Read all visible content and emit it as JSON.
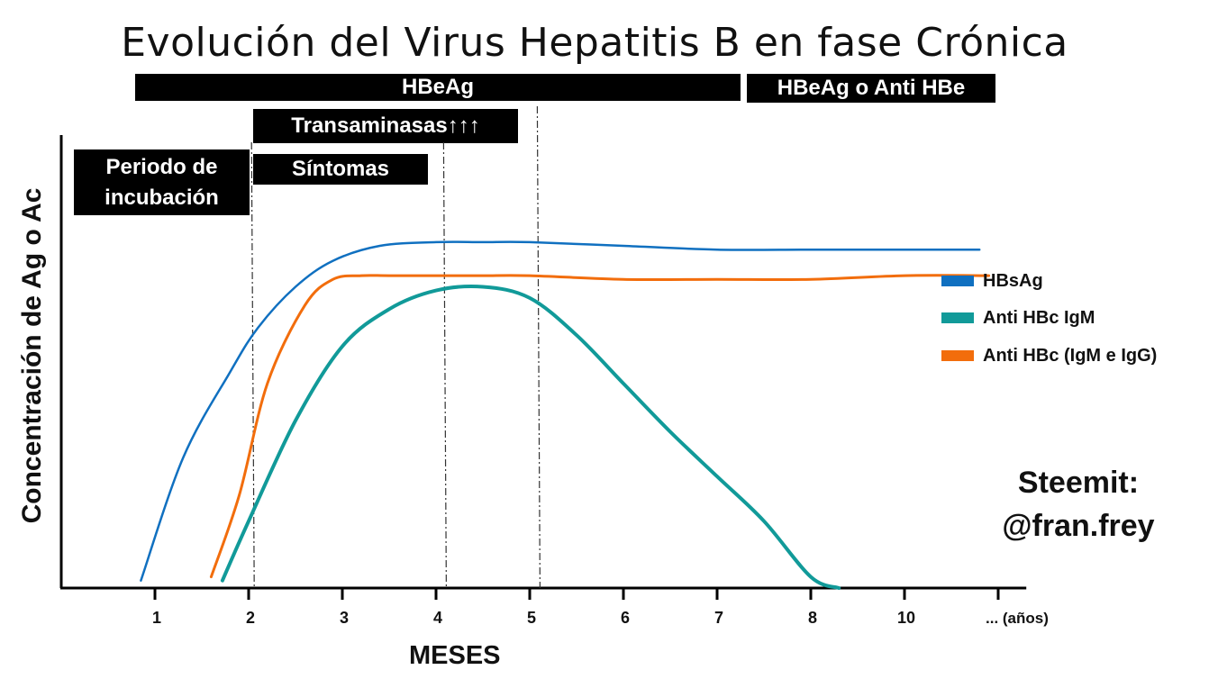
{
  "chart_data": {
    "type": "line",
    "title": "Evolución del Virus Hepatitis B en fase Crónica",
    "xlabel": "MESES",
    "ylabel": "Concentración de Ag o Ac",
    "x_ticks": [
      {
        "label": "1",
        "x": 1
      },
      {
        "label": "2",
        "x": 2
      },
      {
        "label": "3",
        "x": 3
      },
      {
        "label": "4",
        "x": 4
      },
      {
        "label": "5",
        "x": 5
      },
      {
        "label": "6",
        "x": 6
      },
      {
        "label": "7",
        "x": 7
      },
      {
        "label": "8",
        "x": 8
      },
      {
        "label": "10",
        "x": 9
      },
      {
        "label": "... (años)",
        "x": 10
      }
    ],
    "xlim": [
      0,
      10.3
    ],
    "ylim": [
      0,
      100
    ],
    "grid": false,
    "legend_position": "right",
    "series": [
      {
        "name": "HBsAg",
        "color": "#1070C0",
        "x": [
          0.85,
          1.3,
          1.8,
          2.1,
          2.5,
          2.9,
          3.4,
          4.0,
          4.5,
          5.0,
          6.0,
          7.0,
          8.0,
          9.0,
          9.8
        ],
        "y": [
          2,
          35,
          58,
          70,
          81,
          88,
          92,
          93,
          93,
          93,
          92,
          91,
          91,
          91,
          91
        ]
      },
      {
        "name": "Anti HBc IgM",
        "color": "#119A99",
        "x": [
          1.72,
          2.0,
          2.5,
          3.0,
          3.5,
          4.0,
          4.5,
          5.0,
          5.5,
          6.0,
          6.5,
          7.0,
          7.5,
          8.0,
          8.3
        ],
        "y": [
          2,
          18,
          45,
          65,
          75,
          80,
          81,
          78,
          68,
          55,
          42,
          30,
          18,
          3,
          0
        ]
      },
      {
        "name": "Anti HBc (IgM e IgG)",
        "color": "#F26D0C",
        "x": [
          1.6,
          1.9,
          2.2,
          2.6,
          2.9,
          3.2,
          3.5,
          4.0,
          4.5,
          5.0,
          6.0,
          7.0,
          8.0,
          9.0,
          9.9
        ],
        "y": [
          3,
          25,
          55,
          76,
          83,
          84,
          84,
          84,
          84,
          84,
          83,
          83,
          83,
          84,
          84
        ]
      }
    ],
    "phase_lines_x": [
      2.05,
      4.1,
      5.1
    ],
    "bands": [
      {
        "label": "HBeAg",
        "from_x": 0.8,
        "to_x": 7.4
      },
      {
        "label": "HBeAg o Anti HBe",
        "from_x": 7.4,
        "to_x": 10.1
      },
      {
        "label": "Transaminasas↑↑↑",
        "from_x": 2.05,
        "to_x": 5.05
      },
      {
        "label": "Periodo de incubación",
        "lines": [
          "Periodo de",
          "incubación"
        ]
      },
      {
        "label": "Síntomas",
        "from_x": 2.05,
        "to_x": 4.05
      }
    ]
  },
  "credit": {
    "line1": "Steemit:",
    "line2": "@fran.frey"
  }
}
